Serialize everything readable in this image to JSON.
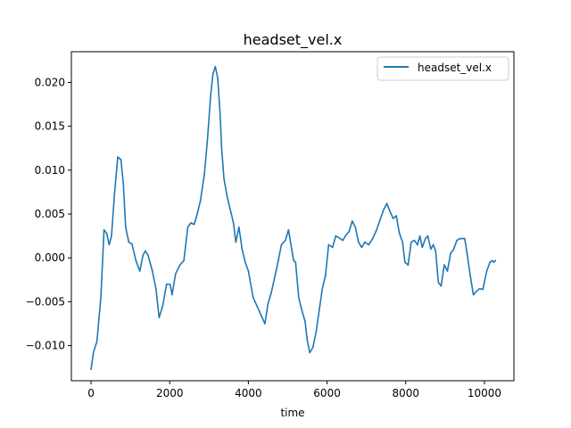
{
  "chart_data": {
    "type": "line",
    "title": "headset_vel.x",
    "xlabel": "time",
    "ylabel": "",
    "xlim": [
      -500,
      10750
    ],
    "ylim": [
      -0.014,
      0.0235
    ],
    "xticks": [
      0,
      2000,
      4000,
      6000,
      8000,
      10000
    ],
    "xtick_labels": [
      "0",
      "2000",
      "4000",
      "6000",
      "8000",
      "10000"
    ],
    "yticks": [
      -0.01,
      -0.005,
      0.0,
      0.005,
      0.01,
      0.015,
      0.02
    ],
    "ytick_labels": [
      "−0.010",
      "−0.005",
      "0.000",
      "0.005",
      "0.010",
      "0.015",
      "0.020"
    ],
    "grid": false,
    "legend_position": "top-right",
    "series": [
      {
        "name": "headset_vel.x",
        "color": "#1f77b4",
        "points": [
          [
            0,
            -0.0127
          ],
          [
            60,
            -0.0108
          ],
          [
            150,
            -0.0095
          ],
          [
            250,
            -0.0045
          ],
          [
            330,
            0.0032
          ],
          [
            400,
            0.0028
          ],
          [
            460,
            0.0015
          ],
          [
            520,
            0.0025
          ],
          [
            600,
            0.0075
          ],
          [
            680,
            0.0115
          ],
          [
            760,
            0.0112
          ],
          [
            820,
            0.0085
          ],
          [
            880,
            0.0035
          ],
          [
            960,
            0.0018
          ],
          [
            1040,
            0.0016
          ],
          [
            1140,
            -0.0003
          ],
          [
            1240,
            -0.0015
          ],
          [
            1320,
            0.0003
          ],
          [
            1380,
            0.0008
          ],
          [
            1450,
            0.0003
          ],
          [
            1560,
            -0.0015
          ],
          [
            1650,
            -0.0035
          ],
          [
            1730,
            -0.0068
          ],
          [
            1820,
            -0.0055
          ],
          [
            1920,
            -0.003
          ],
          [
            2010,
            -0.003
          ],
          [
            2060,
            -0.0042
          ],
          [
            2150,
            -0.0018
          ],
          [
            2260,
            -0.0008
          ],
          [
            2360,
            -0.0003
          ],
          [
            2460,
            0.0035
          ],
          [
            2540,
            0.004
          ],
          [
            2620,
            0.0038
          ],
          [
            2700,
            0.005
          ],
          [
            2780,
            0.0065
          ],
          [
            2880,
            0.0095
          ],
          [
            2960,
            0.0135
          ],
          [
            3040,
            0.0185
          ],
          [
            3100,
            0.021
          ],
          [
            3160,
            0.0218
          ],
          [
            3220,
            0.0205
          ],
          [
            3280,
            0.0165
          ],
          [
            3320,
            0.0125
          ],
          [
            3380,
            0.009
          ],
          [
            3460,
            0.007
          ],
          [
            3540,
            0.0055
          ],
          [
            3620,
            0.004
          ],
          [
            3680,
            0.0018
          ],
          [
            3760,
            0.0035
          ],
          [
            3840,
            0.001
          ],
          [
            3920,
            -0.0005
          ],
          [
            4000,
            -0.0015
          ],
          [
            4120,
            -0.0045
          ],
          [
            4220,
            -0.0055
          ],
          [
            4320,
            -0.0065
          ],
          [
            4420,
            -0.0075
          ],
          [
            4500,
            -0.0052
          ],
          [
            4580,
            -0.004
          ],
          [
            4680,
            -0.002
          ],
          [
            4760,
            -0.0003
          ],
          [
            4840,
            0.0015
          ],
          [
            4940,
            0.002
          ],
          [
            5020,
            0.0032
          ],
          [
            5100,
            0.001
          ],
          [
            5150,
            -0.0003
          ],
          [
            5200,
            -0.0005
          ],
          [
            5280,
            -0.0045
          ],
          [
            5360,
            -0.006
          ],
          [
            5440,
            -0.0072
          ],
          [
            5500,
            -0.0095
          ],
          [
            5560,
            -0.0108
          ],
          [
            5640,
            -0.0102
          ],
          [
            5720,
            -0.0085
          ],
          [
            5800,
            -0.006
          ],
          [
            5880,
            -0.0035
          ],
          [
            5960,
            -0.002
          ],
          [
            6040,
            0.0015
          ],
          [
            6140,
            0.0012
          ],
          [
            6220,
            0.0025
          ],
          [
            6300,
            0.0023
          ],
          [
            6400,
            0.002
          ],
          [
            6480,
            0.0026
          ],
          [
            6560,
            0.003
          ],
          [
            6640,
            0.0042
          ],
          [
            6720,
            0.0035
          ],
          [
            6800,
            0.0018
          ],
          [
            6880,
            0.0012
          ],
          [
            6960,
            0.0018
          ],
          [
            7060,
            0.0015
          ],
          [
            7160,
            0.0022
          ],
          [
            7260,
            0.0032
          ],
          [
            7360,
            0.0045
          ],
          [
            7440,
            0.0055
          ],
          [
            7520,
            0.0062
          ],
          [
            7600,
            0.0053
          ],
          [
            7680,
            0.0045
          ],
          [
            7760,
            0.0048
          ],
          [
            7840,
            0.0028
          ],
          [
            7920,
            0.0018
          ],
          [
            7980,
            -0.0005
          ],
          [
            8060,
            -0.0008
          ],
          [
            8140,
            0.0018
          ],
          [
            8220,
            0.002
          ],
          [
            8300,
            0.0015
          ],
          [
            8360,
            0.0025
          ],
          [
            8420,
            0.0012
          ],
          [
            8500,
            0.0022
          ],
          [
            8560,
            0.0025
          ],
          [
            8640,
            0.001
          ],
          [
            8700,
            0.0015
          ],
          [
            8760,
            0.0008
          ],
          [
            8830,
            -0.0028
          ],
          [
            8900,
            -0.0032
          ],
          [
            8980,
            -0.0008
          ],
          [
            9060,
            -0.0015
          ],
          [
            9140,
            0.0005
          ],
          [
            9220,
            0.001
          ],
          [
            9300,
            0.002
          ],
          [
            9380,
            0.0022
          ],
          [
            9440,
            0.0022
          ],
          [
            9500,
            0.0022
          ],
          [
            9560,
            0.0005
          ],
          [
            9640,
            -0.002
          ],
          [
            9720,
            -0.0042
          ],
          [
            9800,
            -0.0038
          ],
          [
            9880,
            -0.0035
          ],
          [
            9960,
            -0.0036
          ],
          [
            10060,
            -0.0015
          ],
          [
            10140,
            -0.0005
          ],
          [
            10200,
            -0.0003
          ],
          [
            10240,
            -0.0005
          ],
          [
            10280,
            -0.0003
          ]
        ]
      }
    ]
  }
}
